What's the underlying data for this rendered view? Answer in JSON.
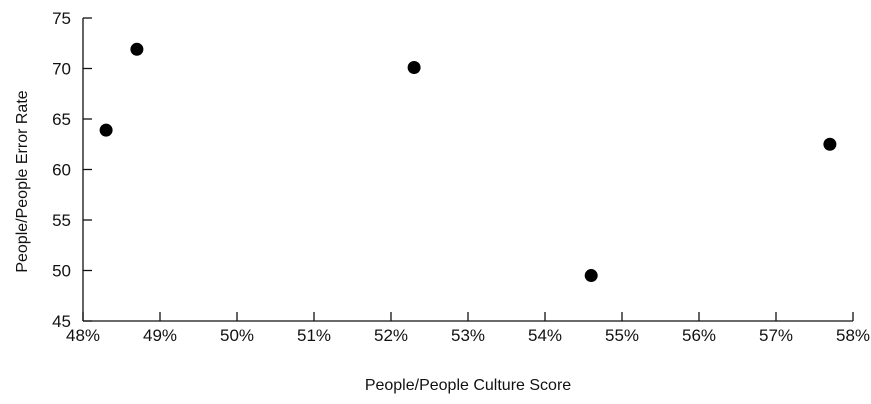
{
  "chart_data": {
    "type": "scatter",
    "title": "",
    "xlabel": "People/People Culture Score",
    "ylabel": "People/People Error Rate",
    "xlim": [
      48,
      58
    ],
    "ylim": [
      45,
      75
    ],
    "x_ticks": [
      48,
      49,
      50,
      51,
      52,
      53,
      54,
      55,
      56,
      57,
      58
    ],
    "x_tick_labels": [
      "48%",
      "49%",
      "50%",
      "51%",
      "52%",
      "53%",
      "54%",
      "55%",
      "56%",
      "57%",
      "58%"
    ],
    "y_ticks": [
      45,
      50,
      55,
      60,
      65,
      70,
      75
    ],
    "y_tick_labels": [
      "45",
      "50",
      "55",
      "60",
      "65",
      "70",
      "75"
    ],
    "grid": false,
    "legend": "none",
    "point_color": "#000000",
    "series": [
      {
        "points": [
          {
            "x": 48.3,
            "y": 63.9
          },
          {
            "x": 48.7,
            "y": 71.9
          },
          {
            "x": 52.3,
            "y": 70.1
          },
          {
            "x": 54.6,
            "y": 49.5
          },
          {
            "x": 57.7,
            "y": 62.5
          }
        ]
      }
    ]
  }
}
